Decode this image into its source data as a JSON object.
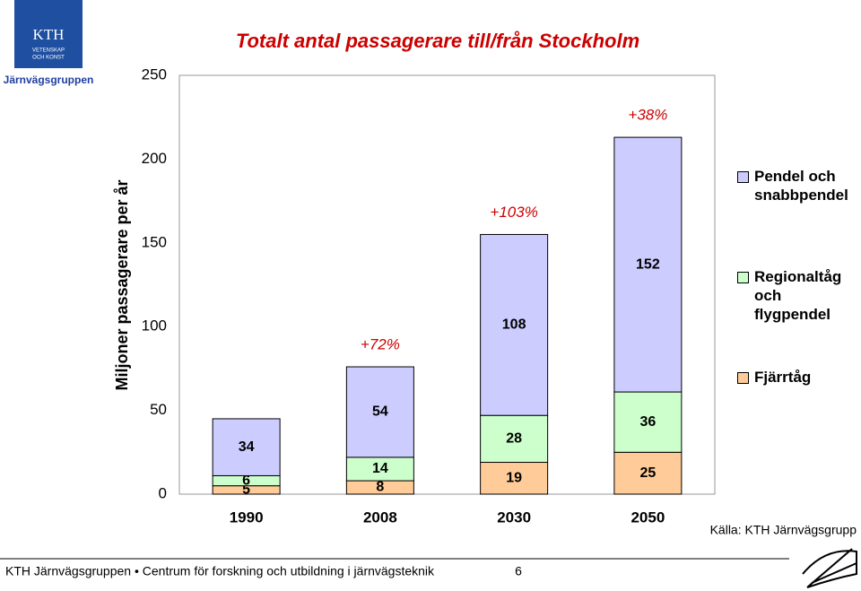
{
  "header": {
    "org": "Järnvägsgruppen",
    "logo": [
      "KTH",
      "VETENSKAP",
      "OCH KONST"
    ]
  },
  "chart_data": {
    "type": "stacked-bar",
    "title": "Totalt antal passagerare till/från Stockholm",
    "y_label": "Miljoner passagerare per år",
    "categories": [
      "1990",
      "2008",
      "2030",
      "2050"
    ],
    "series": [
      {
        "name": "Fjärrtåg",
        "color": "#ffcc99",
        "values": [
          5,
          8,
          19,
          25
        ]
      },
      {
        "name": "Regionaltåg och flygpendel",
        "color": "#ccffcc",
        "values": [
          6,
          14,
          28,
          36
        ]
      },
      {
        "name": "Pendel och snabbpendel",
        "color": "#ccccff",
        "values": [
          34,
          54,
          108,
          152
        ]
      }
    ],
    "annotations": [
      "+72%",
      "+103%",
      "+38%"
    ],
    "ylim": [
      0,
      250
    ],
    "yticks": [
      0,
      50,
      100,
      150,
      200,
      250
    ],
    "grid": false
  },
  "source": "Källa: KTH Järnvägsgrupp",
  "footer": {
    "text": "KTH Järnvägsgruppen • Centrum för forskning och utbildning i järnvägsteknik",
    "page": "6"
  }
}
